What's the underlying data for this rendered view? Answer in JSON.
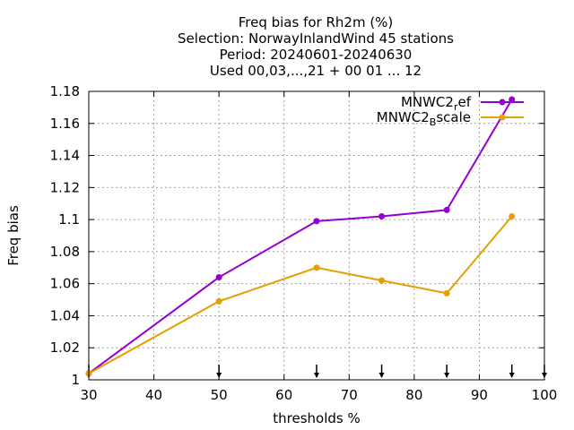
{
  "chart_data": {
    "type": "line",
    "title_lines": [
      "Freq bias  for Rh2m (%)",
      "Selection: NorwayInlandWind     45 stations",
      "Period: 20240601-20240630",
      "Used 00,03,...,21 + 00 01 ... 12"
    ],
    "xlabel": "thresholds %",
    "ylabel": "Freq bias",
    "xlim": [
      30,
      100
    ],
    "ylim": [
      1.0,
      1.18
    ],
    "xticks": [
      30,
      40,
      50,
      60,
      70,
      80,
      90,
      100
    ],
    "xtick_labels": [
      "30",
      "40",
      "50",
      "60",
      "70",
      "80",
      "90",
      "100"
    ],
    "yticks": [
      1.0,
      1.02,
      1.04,
      1.06,
      1.08,
      1.1,
      1.12,
      1.14,
      1.16,
      1.18
    ],
    "ytick_labels": [
      "1",
      "1.02",
      "1.04",
      "1.06",
      "1.08",
      "1.1",
      "1.12",
      "1.14",
      "1.16",
      "1.18"
    ],
    "grid": true,
    "legend_position": "top-right",
    "threshold_markers": [
      30,
      50,
      65,
      75,
      85,
      95,
      100
    ],
    "series": [
      {
        "name_base": "MNWC2",
        "name_sub": "r",
        "name_rest": "ef",
        "color": "#9400d3",
        "x": [
          30,
          50,
          65,
          75,
          85,
          95
        ],
        "y": [
          1.004,
          1.064,
          1.099,
          1.102,
          1.106,
          1.175
        ]
      },
      {
        "name_base": "MNWC2",
        "name_sub": "B",
        "name_rest": "scale",
        "color": "#e69f00",
        "x": [
          30,
          50,
          65,
          75,
          85,
          95
        ],
        "y": [
          1.004,
          1.049,
          1.07,
          1.062,
          1.054,
          1.102
        ]
      }
    ]
  }
}
